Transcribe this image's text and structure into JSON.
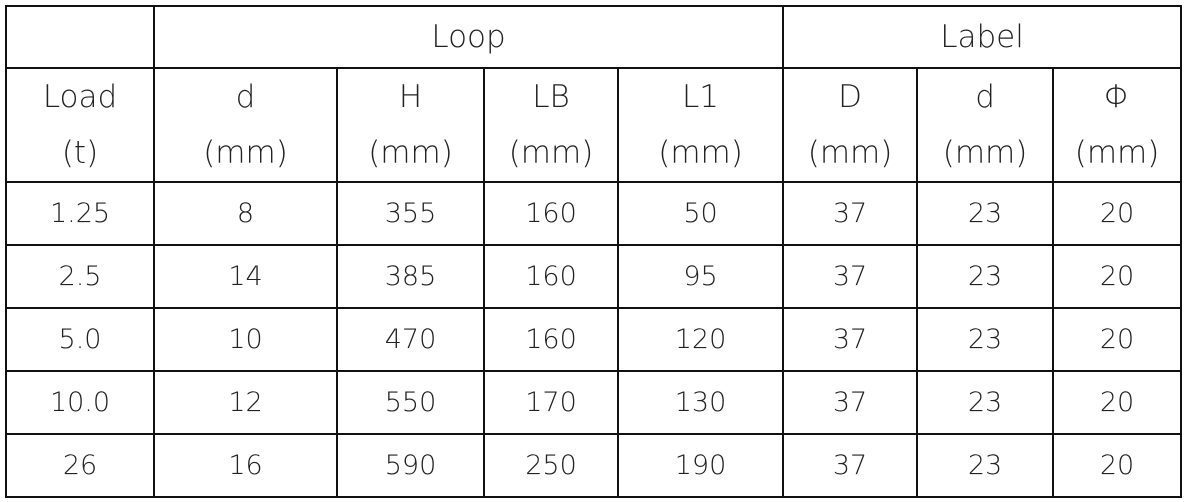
{
  "table": {
    "groups": [
      {
        "label": "Loop",
        "span": 4
      },
      {
        "label": "Label",
        "span": 3
      }
    ],
    "columns": [
      {
        "name": "Load",
        "unit": "(t)"
      },
      {
        "name": "d",
        "unit": "(mm)"
      },
      {
        "name": "H",
        "unit": "(mm)"
      },
      {
        "name": "LB",
        "unit": "(mm)"
      },
      {
        "name": "L1",
        "unit": "(mm)"
      },
      {
        "name": "D",
        "unit": "(mm)"
      },
      {
        "name": "d",
        "unit": "(mm)"
      },
      {
        "name": "Φ",
        "unit": "(mm)"
      }
    ],
    "rows": [
      [
        "1.25",
        "8",
        "355",
        "160",
        "50",
        "37",
        "23",
        "20"
      ],
      [
        "2.5",
        "14",
        "385",
        "160",
        "95",
        "37",
        "23",
        "20"
      ],
      [
        "5.0",
        "10",
        "470",
        "160",
        "120",
        "37",
        "23",
        "20"
      ],
      [
        "10.0",
        "12",
        "550",
        "170",
        "130",
        "37",
        "23",
        "20"
      ],
      [
        "26",
        "16",
        "590",
        "250",
        "190",
        "37",
        "23",
        "20"
      ]
    ]
  }
}
